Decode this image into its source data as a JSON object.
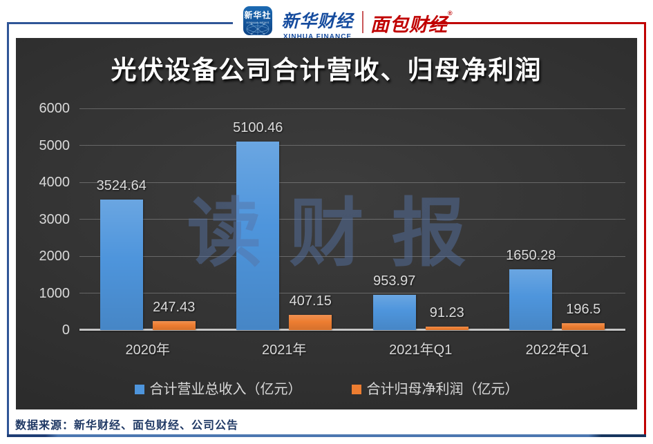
{
  "header": {
    "xinhua_icon": {
      "cn": "新华社",
      "en": "XINHUA NEWS"
    },
    "xinhua_finance": {
      "cn": "新华财经",
      "en": "XINHUA FINANCE"
    },
    "bread_finance": {
      "cn": "面包财经",
      "reg": "®"
    }
  },
  "chart_data": {
    "type": "bar",
    "title": "光伏设备公司合计营收、归母净利润",
    "categories": [
      "2020年",
      "2021年",
      "2021年Q1",
      "2022年Q1"
    ],
    "series": [
      {
        "name": "合计营业总收入（亿元）",
        "color": "#4E95DC",
        "values": [
          3524.64,
          5100.46,
          953.97,
          1650.28
        ]
      },
      {
        "name": "合计归母净利润（亿元）",
        "color": "#ED7D31",
        "values": [
          247.43,
          407.15,
          91.23,
          196.5
        ]
      }
    ],
    "ylim": [
      0,
      6000
    ],
    "yticks": [
      0,
      1000,
      2000,
      3000,
      4000,
      5000,
      6000
    ],
    "grid": true,
    "legend_position": "bottom",
    "watermark": "读财报"
  },
  "footer": {
    "source": "数据来源：新华财经、面包财经、公司公告"
  },
  "colors": {
    "frame_blue": "#2F5597",
    "frame_red": "#C00000",
    "panel_background": "#2E2E2E",
    "revenue_bar": "#4E95DC",
    "profit_bar": "#ED7D31",
    "axis_text": "#D9D9D9",
    "watermark_blue": "#56739F",
    "source_text": "#1F3864"
  }
}
